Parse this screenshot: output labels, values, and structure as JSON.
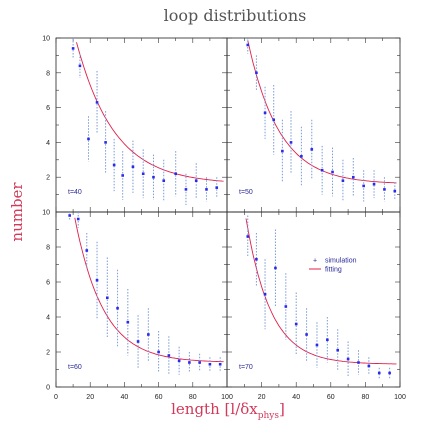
{
  "title": "loop distributions",
  "xlabel": "length",
  "xlabel_math": "[l/δx",
  "xlabel_sub": "phys",
  "xlabel_close": "]",
  "ylabel": "number",
  "colors": {
    "simulation": "#2a2aee",
    "fitting": "#e0204a",
    "errorbar": "#7a9ad8"
  },
  "chart_data": {
    "type": "scatter",
    "layout": "2x2 panels",
    "xlim": [
      0,
      100
    ],
    "ylim": [
      0,
      10
    ],
    "x_ticks": [
      "0",
      "20",
      "40",
      "60",
      "80",
      "100"
    ],
    "x_ticks_right": [
      "20",
      "40",
      "60",
      "80",
      "100"
    ],
    "y_ticks_top": [
      "2",
      "4",
      "6",
      "8",
      "10"
    ],
    "y_ticks_bottom": [
      "0",
      "2",
      "4",
      "6",
      "8",
      "10"
    ],
    "legend": {
      "placement": "top-right of lower-right panel",
      "entries": [
        {
          "label": "simulation",
          "marker": "+"
        },
        {
          "label": "fitting",
          "marker": "line"
        }
      ]
    },
    "panels": [
      {
        "label": "t=40",
        "fit_a": 14,
        "fit_b": 0.045,
        "fit_c": 1.6,
        "points": [
          {
            "x": 10,
            "y": 9.4,
            "e": 0.6
          },
          {
            "x": 14,
            "y": 8.4,
            "e": 0.7
          },
          {
            "x": 19,
            "y": 4.2,
            "e": 1.3
          },
          {
            "x": 24,
            "y": 6.3,
            "e": 1.8
          },
          {
            "x": 29,
            "y": 4.0,
            "e": 1.8
          },
          {
            "x": 34,
            "y": 2.7,
            "e": 1.5
          },
          {
            "x": 39,
            "y": 2.1,
            "e": 1.4
          },
          {
            "x": 45,
            "y": 2.6,
            "e": 1.5
          },
          {
            "x": 51,
            "y": 2.2,
            "e": 1.4
          },
          {
            "x": 57,
            "y": 2.0,
            "e": 1.3
          },
          {
            "x": 63,
            "y": 1.8,
            "e": 1.2
          },
          {
            "x": 70,
            "y": 2.2,
            "e": 1.3
          },
          {
            "x": 76,
            "y": 1.3,
            "e": 0.9
          },
          {
            "x": 82,
            "y": 1.8,
            "e": 1.0
          },
          {
            "x": 88,
            "y": 1.3,
            "e": 0.7
          },
          {
            "x": 94,
            "y": 1.4,
            "e": 0.6
          }
        ]
      },
      {
        "label": "t=50",
        "fit_a": 16,
        "fit_b": 0.055,
        "fit_c": 1.6,
        "points": [
          {
            "x": 12,
            "y": 9.6,
            "e": 0.5
          },
          {
            "x": 17,
            "y": 8.0,
            "e": 1.0
          },
          {
            "x": 22,
            "y": 5.7,
            "e": 1.5
          },
          {
            "x": 27,
            "y": 5.3,
            "e": 2.0
          },
          {
            "x": 32,
            "y": 3.5,
            "e": 1.8
          },
          {
            "x": 37,
            "y": 4.0,
            "e": 1.8
          },
          {
            "x": 43,
            "y": 3.2,
            "e": 1.7
          },
          {
            "x": 49,
            "y": 3.6,
            "e": 1.7
          },
          {
            "x": 55,
            "y": 2.4,
            "e": 1.4
          },
          {
            "x": 61,
            "y": 2.3,
            "e": 1.4
          },
          {
            "x": 67,
            "y": 1.8,
            "e": 1.2
          },
          {
            "x": 73,
            "y": 2.0,
            "e": 1.1
          },
          {
            "x": 79,
            "y": 1.5,
            "e": 0.9
          },
          {
            "x": 85,
            "y": 1.6,
            "e": 0.8
          },
          {
            "x": 91,
            "y": 1.3,
            "e": 0.7
          },
          {
            "x": 97,
            "y": 1.2,
            "e": 0.5
          }
        ]
      },
      {
        "label": "t=60",
        "fit_a": 16,
        "fit_b": 0.06,
        "fit_c": 1.4,
        "points": [
          {
            "x": 8,
            "y": 9.8,
            "e": 0.3
          },
          {
            "x": 13,
            "y": 9.6,
            "e": 0.5
          },
          {
            "x": 18,
            "y": 7.8,
            "e": 1.0
          },
          {
            "x": 24,
            "y": 6.1,
            "e": 2.2
          },
          {
            "x": 30,
            "y": 5.1,
            "e": 2.3
          },
          {
            "x": 36,
            "y": 4.5,
            "e": 2.2
          },
          {
            "x": 42,
            "y": 3.7,
            "e": 1.9
          },
          {
            "x": 48,
            "y": 2.6,
            "e": 1.5
          },
          {
            "x": 54,
            "y": 3.0,
            "e": 1.5
          },
          {
            "x": 60,
            "y": 2.0,
            "e": 1.2
          },
          {
            "x": 66,
            "y": 1.8,
            "e": 1.1
          },
          {
            "x": 72,
            "y": 1.5,
            "e": 0.8
          },
          {
            "x": 78,
            "y": 1.4,
            "e": 0.6
          },
          {
            "x": 84,
            "y": 1.4,
            "e": 0.5
          },
          {
            "x": 90,
            "y": 1.3,
            "e": 0.4
          },
          {
            "x": 96,
            "y": 1.3,
            "e": 0.4
          }
        ]
      },
      {
        "label": "t=70",
        "fit_a": 18,
        "fit_b": 0.07,
        "fit_c": 1.3,
        "points": [
          {
            "x": 12,
            "y": 8.6,
            "e": 1.2
          },
          {
            "x": 17,
            "y": 7.3,
            "e": 1.5
          },
          {
            "x": 22,
            "y": 5.3,
            "e": 2.0
          },
          {
            "x": 28,
            "y": 6.8,
            "e": 2.2
          },
          {
            "x": 34,
            "y": 4.6,
            "e": 1.9
          },
          {
            "x": 40,
            "y": 3.6,
            "e": 1.8
          },
          {
            "x": 46,
            "y": 3.0,
            "e": 1.5
          },
          {
            "x": 52,
            "y": 2.4,
            "e": 1.3
          },
          {
            "x": 58,
            "y": 2.7,
            "e": 1.3
          },
          {
            "x": 64,
            "y": 2.1,
            "e": 1.2
          },
          {
            "x": 70,
            "y": 1.6,
            "e": 1.0
          },
          {
            "x": 76,
            "y": 1.4,
            "e": 0.7
          },
          {
            "x": 82,
            "y": 1.2,
            "e": 0.5
          },
          {
            "x": 88,
            "y": 0.8,
            "e": 0.3
          },
          {
            "x": 94,
            "y": 0.8,
            "e": 0.3
          }
        ]
      }
    ]
  }
}
